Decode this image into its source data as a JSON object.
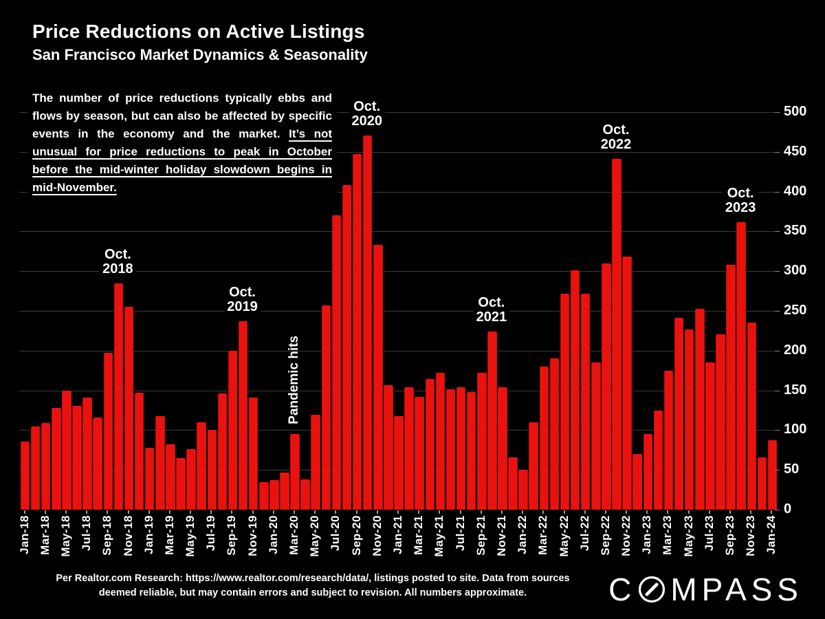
{
  "header": {
    "title": "Price Reductions on Active Listings",
    "subtitle": "San Francisco Market Dynamics & Seasonality"
  },
  "commentary": {
    "normal": "The number of price reductions typically ebbs and flows by season, but can also be affected by specific events in the economy and the market. ",
    "underlined": "It’s not unusual for price reductions to peak in October before the mid-winter holiday slowdown begins in mid-November."
  },
  "annotations": [
    {
      "month": "Oct-18",
      "lines": [
        "Oct.",
        "2018"
      ]
    },
    {
      "month": "Oct-19",
      "lines": [
        "Oct.",
        "2019"
      ]
    },
    {
      "month": "Oct-20",
      "lines": [
        "Oct.",
        "2020"
      ]
    },
    {
      "month": "Oct-21",
      "lines": [
        "Oct.",
        "2021"
      ]
    },
    {
      "month": "Oct-22",
      "lines": [
        "Oct.",
        "2022"
      ]
    },
    {
      "month": "Oct-23",
      "lines": [
        "Oct.",
        "2023"
      ]
    }
  ],
  "event_annotation": {
    "month": "Mar-20",
    "label": "Pandemic hits"
  },
  "footer": {
    "source": "Per Realtor.com Research:  https://www.realtor.com/research/data/, listings posted to site. Data from sources deemed reliable, but may contain errors and subject to revision. All numbers approximate."
  },
  "logo": {
    "prefix": "C",
    "suffix": "MPASS"
  },
  "colors": {
    "background": "#000000",
    "bar": "#ea120e",
    "grid": "#3c3c3c",
    "text": "#ffffff"
  },
  "chart_data": {
    "type": "bar",
    "title": "Price Reductions on Active Listings",
    "xlabel": "",
    "ylabel": "",
    "ylim": [
      0,
      500
    ],
    "ytick_step": 50,
    "yaxis_side": "right",
    "grid": true,
    "xtick_every": 2,
    "x": [
      "Jan-18",
      "Feb-18",
      "Mar-18",
      "Apr-18",
      "May-18",
      "Jun-18",
      "Jul-18",
      "Aug-18",
      "Sep-18",
      "Oct-18",
      "Nov-18",
      "Dec-18",
      "Jan-19",
      "Feb-19",
      "Mar-19",
      "Apr-19",
      "May-19",
      "Jun-19",
      "Jul-19",
      "Aug-19",
      "Sep-19",
      "Oct-19",
      "Nov-19",
      "Dec-19",
      "Jan-20",
      "Feb-20",
      "Mar-20",
      "Apr-20",
      "May-20",
      "Jun-20",
      "Jul-20",
      "Aug-20",
      "Sep-20",
      "Oct-20",
      "Nov-20",
      "Dec-20",
      "Jan-21",
      "Feb-21",
      "Mar-21",
      "Apr-21",
      "May-21",
      "Jun-21",
      "Jul-21",
      "Aug-21",
      "Sep-21",
      "Oct-21",
      "Nov-21",
      "Dec-21",
      "Jan-22",
      "Feb-22",
      "Mar-22",
      "Apr-22",
      "May-22",
      "Jun-22",
      "Jul-22",
      "Aug-22",
      "Sep-22",
      "Oct-22",
      "Nov-22",
      "Dec-22",
      "Jan-23",
      "Feb-23",
      "Mar-23",
      "Apr-23",
      "May-23",
      "Jun-23",
      "Jul-23",
      "Aug-23",
      "Sep-23",
      "Oct-23",
      "Nov-23",
      "Dec-23",
      "Jan-24"
    ],
    "values": [
      86,
      105,
      109,
      128,
      150,
      131,
      141,
      116,
      197,
      285,
      255,
      147,
      78,
      118,
      82,
      65,
      76,
      110,
      100,
      146,
      200,
      237,
      141,
      35,
      37,
      47,
      95,
      38,
      119,
      257,
      370,
      408,
      447,
      471,
      333,
      157,
      118,
      154,
      142,
      164,
      172,
      151,
      154,
      148,
      172,
      224,
      154,
      66,
      50,
      110,
      180,
      190,
      272,
      301,
      272,
      185,
      310,
      441,
      318,
      70,
      95,
      125,
      175,
      241,
      227,
      253,
      185,
      221,
      308,
      362,
      235,
      66,
      87
    ]
  }
}
